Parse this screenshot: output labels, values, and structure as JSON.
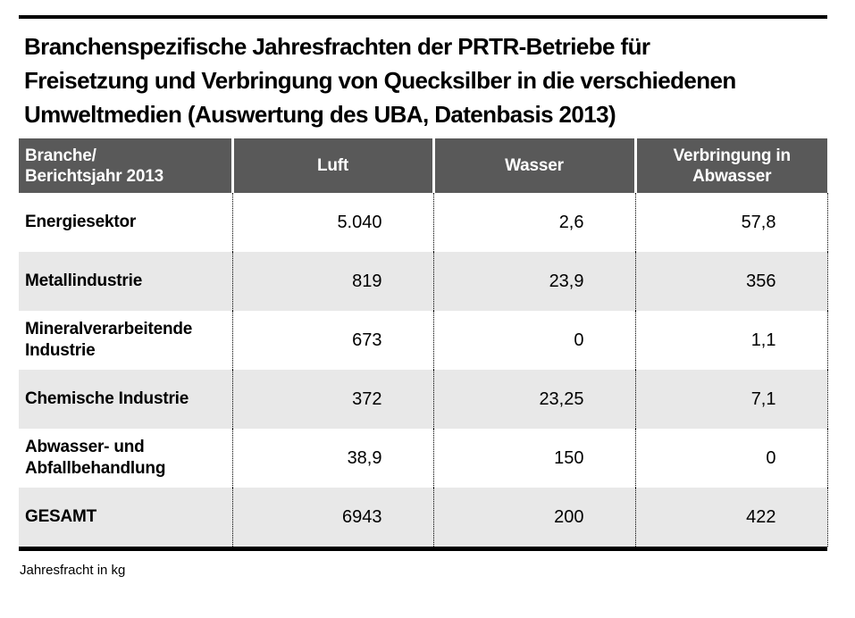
{
  "title": "Branchenspezifische Jahresfrachten der PRTR-Betriebe für\nFreisetzung und Verbringung von Quecksilber in die verschiedenen\nUmweltmedien (Auswertung des UBA, Datenbasis 2013)",
  "table": {
    "header": {
      "col0": "Branche/\nBerichtsjahr 2013",
      "col1": "Luft",
      "col2": "Wasser",
      "col3": "Verbringung in\nAbwasser"
    },
    "rows": [
      {
        "label": "Energiesektor",
        "luft": "5.040",
        "wasser": "2,6",
        "abwasser": "57,8"
      },
      {
        "label": "Metallindustrie",
        "luft": "819",
        "wasser": "23,9",
        "abwasser": "356"
      },
      {
        "label": "Mineralverarbeitende Industrie",
        "luft": "673",
        "wasser": "0",
        "abwasser": "1,1"
      },
      {
        "label": "Chemische Industrie",
        "luft": "372",
        "wasser": "23,25",
        "abwasser": "7,1"
      },
      {
        "label": "Abwasser- und Abfallbehandlung",
        "luft": "38,9",
        "wasser": "150",
        "abwasser": "0"
      },
      {
        "label": "GESAMT",
        "luft": "6943",
        "wasser": "200",
        "abwasser": "422"
      }
    ]
  },
  "footnote": "Jahresfracht in kg",
  "colors": {
    "header_bg": "#595959",
    "header_text": "#ffffff",
    "row_alt_bg": "#e8e8e8",
    "rule": "#000000",
    "text": "#000000"
  },
  "chart_data": {
    "type": "table",
    "title": "Branchenspezifische Jahresfrachten der PRTR-Betriebe für Freisetzung und Verbringung von Quecksilber in die verschiedenen Umweltmedien (Auswertung des UBA, Datenbasis 2013)",
    "columns": [
      "Branche/Berichtsjahr 2013",
      "Luft",
      "Wasser",
      "Verbringung in Abwasser"
    ],
    "rows": [
      [
        "Energiesektor",
        5040,
        2.6,
        57.8
      ],
      [
        "Metallindustrie",
        819,
        23.9,
        356
      ],
      [
        "Mineralverarbeitende Industrie",
        673,
        0,
        1.1
      ],
      [
        "Chemische Industrie",
        372,
        23.25,
        7.1
      ],
      [
        "Abwasser- und Abfallbehandlung",
        38.9,
        150,
        0
      ],
      [
        "GESAMT",
        6943,
        200,
        422
      ]
    ],
    "unit_note": "Jahresfracht in kg",
    "number_format": "German decimal comma, thousands dot"
  }
}
